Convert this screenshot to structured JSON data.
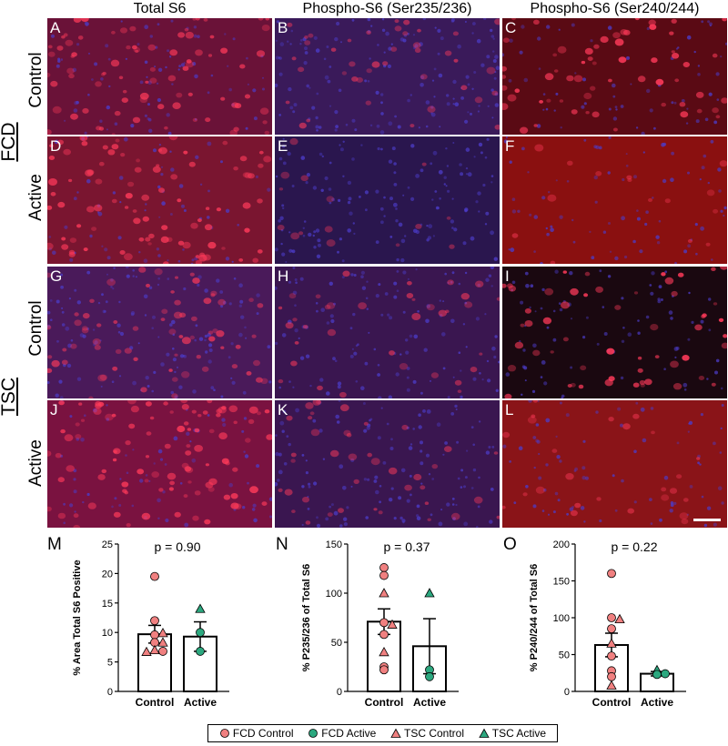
{
  "columns": [
    "Total S6",
    "Phospho-S6 (Ser235/236)",
    "Phospho-S6 (Ser240/244)"
  ],
  "groups": [
    {
      "name": "FCD",
      "rows": [
        "Control",
        "Active"
      ]
    },
    {
      "name": "TSC",
      "rows": [
        "Control",
        "Active"
      ]
    }
  ],
  "panel_letters": [
    "A",
    "B",
    "C",
    "D",
    "E",
    "F",
    "G",
    "H",
    "I",
    "J",
    "K",
    "L"
  ],
  "colors": {
    "fcd_control": "#f08080",
    "fcd_active": "#2ca87f",
    "tsc_control": "#f08080",
    "tsc_active": "#2ca87f",
    "bar_edge": "#000000"
  },
  "legend": [
    {
      "label": "FCD Control",
      "marker": "circle",
      "color": "#f08080"
    },
    {
      "label": "FCD Active",
      "marker": "circle",
      "color": "#2ca87f"
    },
    {
      "label": "TSC Control",
      "marker": "triangle",
      "color": "#f08080"
    },
    {
      "label": "TSC Active",
      "marker": "triangle",
      "color": "#2ca87f"
    }
  ],
  "chart_data": [
    {
      "type": "bar",
      "panel": "M",
      "annotation": "p = 0.90",
      "ylabel": "% Area Total S6 Positive",
      "categories": [
        "Control",
        "Active"
      ],
      "values": [
        9.7,
        9.3
      ],
      "sem": [
        1.5,
        2.5
      ],
      "ylim": [
        0,
        25
      ],
      "yticks": [
        0,
        5,
        10,
        15,
        20,
        25
      ],
      "points": [
        {
          "cat": 0,
          "y": 19.5,
          "marker": "circle",
          "group": "fcd_control"
        },
        {
          "cat": 0,
          "y": 12.0,
          "marker": "circle",
          "group": "fcd_control"
        },
        {
          "cat": 0,
          "y": 9.6,
          "marker": "circle",
          "group": "fcd_control"
        },
        {
          "cat": 0,
          "y": 9.9,
          "marker": "triangle",
          "group": "tsc_control"
        },
        {
          "cat": 0,
          "y": 8.3,
          "marker": "circle",
          "group": "fcd_control"
        },
        {
          "cat": 0,
          "y": 8.3,
          "marker": "triangle",
          "group": "tsc_control"
        },
        {
          "cat": 0,
          "y": 7.0,
          "marker": "triangle",
          "group": "tsc_control"
        },
        {
          "cat": 0,
          "y": 6.8,
          "marker": "circle",
          "group": "fcd_control"
        },
        {
          "cat": 0,
          "y": 6.7,
          "marker": "triangle",
          "group": "tsc_control"
        },
        {
          "cat": 1,
          "y": 14.0,
          "marker": "triangle",
          "group": "tsc_active"
        },
        {
          "cat": 1,
          "y": 10.0,
          "marker": "circle",
          "group": "fcd_active"
        },
        {
          "cat": 1,
          "y": 6.8,
          "marker": "circle",
          "group": "fcd_active"
        }
      ]
    },
    {
      "type": "bar",
      "panel": "N",
      "annotation": "p = 0.37",
      "ylabel": "% P235/236 of Total S6",
      "categories": [
        "Control",
        "Active"
      ],
      "values": [
        71,
        46
      ],
      "sem": [
        13,
        28
      ],
      "ylim": [
        0,
        150
      ],
      "yticks": [
        0,
        50,
        100,
        150
      ],
      "points": [
        {
          "cat": 0,
          "y": 126,
          "marker": "circle",
          "group": "fcd_control"
        },
        {
          "cat": 0,
          "y": 118,
          "marker": "circle",
          "group": "fcd_control"
        },
        {
          "cat": 0,
          "y": 100,
          "marker": "triangle",
          "group": "tsc_control"
        },
        {
          "cat": 0,
          "y": 70,
          "marker": "circle",
          "group": "fcd_control"
        },
        {
          "cat": 0,
          "y": 68,
          "marker": "triangle",
          "group": "tsc_control"
        },
        {
          "cat": 0,
          "y": 58,
          "marker": "circle",
          "group": "fcd_control"
        },
        {
          "cat": 0,
          "y": 40,
          "marker": "triangle",
          "group": "tsc_control"
        },
        {
          "cat": 0,
          "y": 25,
          "marker": "circle",
          "group": "fcd_control"
        },
        {
          "cat": 0,
          "y": 22,
          "marker": "circle",
          "group": "fcd_control"
        },
        {
          "cat": 1,
          "y": 100,
          "marker": "triangle",
          "group": "tsc_active"
        },
        {
          "cat": 1,
          "y": 22,
          "marker": "circle",
          "group": "fcd_active"
        },
        {
          "cat": 1,
          "y": 15,
          "marker": "circle",
          "group": "fcd_active"
        }
      ]
    },
    {
      "type": "bar",
      "panel": "O",
      "annotation": "p = 0.22",
      "ylabel": "% P240/244 of Total S6",
      "categories": [
        "Control",
        "Active"
      ],
      "values": [
        63,
        24
      ],
      "sem": [
        16,
        3
      ],
      "ylim": [
        0,
        200
      ],
      "yticks": [
        0,
        50,
        100,
        150,
        200
      ],
      "points": [
        {
          "cat": 0,
          "y": 160,
          "marker": "circle",
          "group": "fcd_control"
        },
        {
          "cat": 0,
          "y": 100,
          "marker": "circle",
          "group": "fcd_control"
        },
        {
          "cat": 0,
          "y": 98,
          "marker": "triangle",
          "group": "tsc_control"
        },
        {
          "cat": 0,
          "y": 85,
          "marker": "circle",
          "group": "fcd_control"
        },
        {
          "cat": 0,
          "y": 65,
          "marker": "triangle",
          "group": "tsc_control"
        },
        {
          "cat": 0,
          "y": 48,
          "marker": "circle",
          "group": "fcd_control"
        },
        {
          "cat": 0,
          "y": 28,
          "marker": "circle",
          "group": "fcd_control"
        },
        {
          "cat": 0,
          "y": 20,
          "marker": "circle",
          "group": "fcd_control"
        },
        {
          "cat": 0,
          "y": 8,
          "marker": "triangle",
          "group": "tsc_control"
        },
        {
          "cat": 1,
          "y": 29,
          "marker": "triangle",
          "group": "tsc_active"
        },
        {
          "cat": 1,
          "y": 24,
          "marker": "circle",
          "group": "fcd_active"
        },
        {
          "cat": 1,
          "y": 23,
          "marker": "circle",
          "group": "fcd_active"
        }
      ]
    }
  ]
}
